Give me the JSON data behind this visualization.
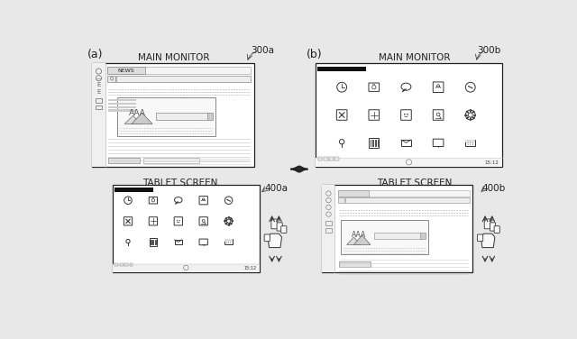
{
  "bg_color": "#e8e8e8",
  "figure_bg": "#e8e8e8",
  "label_a": "(a)",
  "label_b": "(b)",
  "label_300a": "300a",
  "label_300b": "300b",
  "label_400a": "400a",
  "label_400b": "400b",
  "title_main": "MAIN MONITOR",
  "title_tablet": "TABLET SCREEN",
  "box_color": "#222222",
  "font_size_label": 9,
  "font_size_title": 8,
  "font_size_ref": 8,
  "white": "#ffffff",
  "light_gray": "#e0e0e0",
  "mid_gray": "#bbbbbb",
  "dark_gray": "#444444",
  "black": "#111111"
}
